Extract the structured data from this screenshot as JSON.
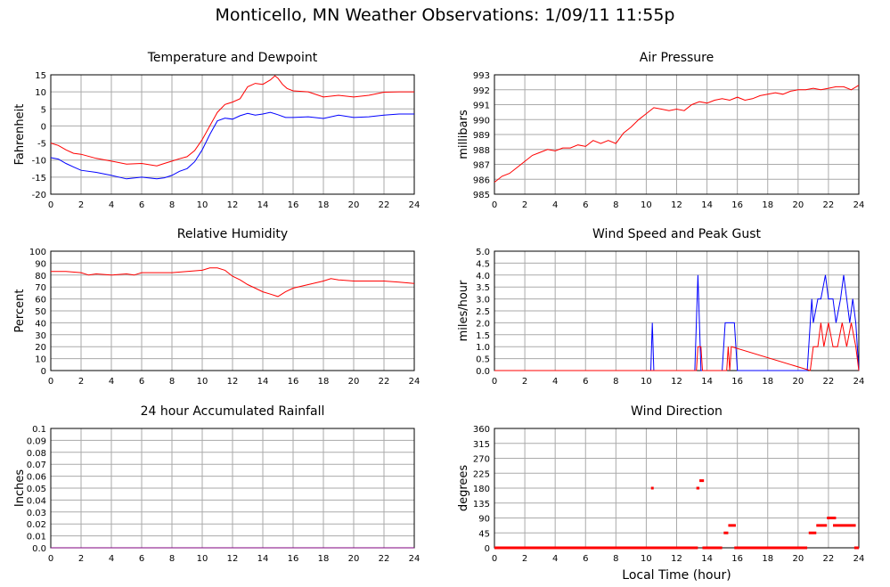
{
  "page_title": "Monticello, MN Weather Observations: 1/09/11 11:55p",
  "colors": {
    "red": "#ff0000",
    "blue": "#0000ff",
    "purple": "#7f007f",
    "grid": "#aaaaaa",
    "frame": "#000000"
  },
  "chart_data": [
    {
      "type": "line",
      "title": "Temperature and Dewpoint",
      "xlabel": "",
      "ylabel": "Fahrenheit",
      "xlim": [
        0,
        24
      ],
      "ylim": [
        -20,
        15
      ],
      "x_ticks": [
        0,
        2,
        4,
        6,
        8,
        10,
        12,
        14,
        16,
        18,
        20,
        22,
        24
      ],
      "y_ticks": [
        "-20",
        "-15",
        "-10",
        "-5",
        "0",
        "5",
        "10",
        "15"
      ],
      "grid": true,
      "series": [
        {
          "color": "#ff0000",
          "x": [
            0,
            0.5,
            1,
            1.5,
            2,
            3,
            4,
            5,
            6,
            7,
            7.5,
            8,
            8.5,
            9,
            9.5,
            10,
            10.5,
            11,
            11.5,
            12,
            12.5,
            13,
            13.5,
            14,
            14.5,
            14.8,
            15,
            15.3,
            15.6,
            16,
            17,
            18,
            19,
            20,
            21,
            22,
            23,
            24
          ],
          "y": [
            -5,
            -5.7,
            -7,
            -8,
            -8.3,
            -9.5,
            -10.3,
            -11.2,
            -11,
            -11.7,
            -11,
            -10.3,
            -9.6,
            -9,
            -7.2,
            -4,
            0,
            4,
            6.3,
            7,
            8,
            11.5,
            12.5,
            12.2,
            13.5,
            14.7,
            14,
            12.2,
            11,
            10.3,
            10,
            8.5,
            9,
            8.5,
            9,
            9.9,
            10,
            10
          ]
        },
        {
          "color": "#0000ff",
          "x": [
            0,
            0.5,
            1,
            1.5,
            2,
            3,
            4,
            5,
            6,
            7,
            7.5,
            8,
            8.5,
            9,
            9.5,
            10,
            10.5,
            11,
            11.5,
            12,
            12.5,
            13,
            13.5,
            14,
            14.5,
            15,
            15.5,
            16,
            17,
            18,
            19,
            20,
            21,
            22,
            23,
            24
          ],
          "y": [
            -9.3,
            -9.7,
            -11,
            -12,
            -13,
            -13.6,
            -14.5,
            -15.5,
            -15,
            -15.5,
            -15.2,
            -14.5,
            -13.3,
            -12.5,
            -10.5,
            -7,
            -2.5,
            1.5,
            2.3,
            2,
            3,
            3.7,
            3.2,
            3.5,
            4,
            3.3,
            2.5,
            2.5,
            2.7,
            2.2,
            3.2,
            2.5,
            2.7,
            3.2,
            3.5,
            3.5
          ]
        }
      ]
    },
    {
      "type": "line",
      "title": "Air Pressure",
      "xlabel": "",
      "ylabel": "millibars",
      "xlim": [
        0,
        24
      ],
      "ylim": [
        985,
        993
      ],
      "x_ticks": [
        0,
        2,
        4,
        6,
        8,
        10,
        12,
        14,
        16,
        18,
        20,
        22,
        24
      ],
      "y_ticks": [
        "985",
        "986",
        "987",
        "988",
        "989",
        "990",
        "991",
        "992",
        "993"
      ],
      "grid": true,
      "series": [
        {
          "color": "#ff0000",
          "x": [
            0,
            0.5,
            1,
            1.5,
            2,
            2.5,
            3,
            3.5,
            4,
            4.5,
            5,
            5.5,
            6,
            6.5,
            7,
            7.5,
            8,
            8.5,
            9,
            9.5,
            10,
            10.5,
            11,
            11.5,
            12,
            12.5,
            13,
            13.5,
            14,
            14.5,
            15,
            15.5,
            16,
            16.5,
            17,
            17.5,
            18,
            18.5,
            19,
            19.5,
            20,
            20.5,
            21,
            21.5,
            22,
            22.5,
            23,
            23.5,
            24
          ],
          "y": [
            985.8,
            986.2,
            986.4,
            986.8,
            987.2,
            987.6,
            987.8,
            988,
            987.9,
            988.1,
            988.1,
            988.3,
            988.2,
            988.6,
            988.4,
            988.6,
            988.4,
            989.1,
            989.5,
            990,
            990.4,
            990.8,
            990.7,
            990.6,
            990.7,
            990.6,
            991,
            991.2,
            991.1,
            991.3,
            991.4,
            991.3,
            991.5,
            991.3,
            991.4,
            991.6,
            991.7,
            991.8,
            991.7,
            991.9,
            992,
            992,
            992.1,
            992,
            992.1,
            992.2,
            992.2,
            992,
            992.3
          ]
        }
      ]
    },
    {
      "type": "line",
      "title": "Relative Humidity",
      "xlabel": "",
      "ylabel": "Percent",
      "xlim": [
        0,
        24
      ],
      "ylim": [
        0,
        100
      ],
      "x_ticks": [
        0,
        2,
        4,
        6,
        8,
        10,
        12,
        14,
        16,
        18,
        20,
        22,
        24
      ],
      "y_ticks": [
        "0",
        "10",
        "20",
        "30",
        "40",
        "50",
        "60",
        "70",
        "80",
        "90",
        "100"
      ],
      "grid": true,
      "series": [
        {
          "color": "#ff0000",
          "x": [
            0,
            1,
            2,
            2.5,
            3,
            4,
            5,
            5.5,
            6,
            7,
            8,
            9,
            10,
            10.5,
            11,
            11.5,
            12,
            12.5,
            13,
            13.5,
            14,
            14.5,
            15,
            15.5,
            16,
            17,
            18,
            18.5,
            19,
            20,
            21,
            22,
            23,
            24
          ],
          "y": [
            83,
            83,
            82,
            80,
            81,
            80,
            81,
            80,
            82,
            82,
            82,
            83,
            84,
            86,
            86,
            84,
            79,
            76,
            72,
            69,
            66,
            64,
            62,
            66,
            69,
            72,
            75,
            77,
            76,
            75,
            75,
            75,
            74,
            73
          ]
        }
      ]
    },
    {
      "type": "line",
      "title": "Wind Speed and Peak Gust",
      "xlabel": "",
      "ylabel": "miles/hour",
      "xlim": [
        0,
        24
      ],
      "ylim": [
        0,
        5
      ],
      "x_ticks": [
        0,
        2,
        4,
        6,
        8,
        10,
        12,
        14,
        16,
        18,
        20,
        22,
        24
      ],
      "y_ticks": [
        "0.0",
        "0.5",
        "1.0",
        "1.5",
        "2.0",
        "2.5",
        "3.0",
        "3.5",
        "4.0",
        "4.5",
        "5.0"
      ],
      "grid": true,
      "series": [
        {
          "color": "#0000ff",
          "x": [
            0,
            10.3,
            10.4,
            10.5,
            13.2,
            13.4,
            13.6,
            15,
            15.2,
            15.5,
            15.8,
            16,
            20.6,
            20.9,
            21,
            21.3,
            21.5,
            21.8,
            22,
            22.3,
            22.5,
            22.8,
            23,
            23.2,
            23.4,
            23.6,
            23.8,
            24
          ],
          "y": [
            0,
            0,
            2,
            0,
            0,
            4,
            0,
            0,
            2,
            2,
            2,
            0,
            0,
            3,
            2,
            3,
            3,
            4,
            3,
            3,
            2,
            3,
            4,
            3,
            2,
            3,
            2,
            0
          ]
        },
        {
          "color": "#ff0000",
          "x": [
            0,
            13.3,
            13.4,
            13.6,
            13.7,
            15.3,
            15.4,
            15.5,
            15.6,
            20.8,
            21,
            21.3,
            21.5,
            21.7,
            22,
            22.3,
            22.6,
            22.9,
            23.2,
            23.5,
            23.8,
            24
          ],
          "y": [
            0,
            0,
            1,
            1,
            0,
            0,
            1,
            0,
            1,
            0,
            1,
            1,
            2,
            1,
            2,
            1,
            1,
            2,
            1,
            2,
            1,
            0
          ]
        }
      ]
    },
    {
      "type": "line",
      "title": "24 hour Accumulated Rainfall",
      "xlabel": "",
      "ylabel": "Inches",
      "xlim": [
        0,
        24
      ],
      "ylim": [
        0,
        0.1
      ],
      "x_ticks": [
        0,
        2,
        4,
        6,
        8,
        10,
        12,
        14,
        16,
        18,
        20,
        22,
        24
      ],
      "y_ticks": [
        "0.0",
        "0.01",
        "0.02",
        "0.03",
        "0.04",
        "0.05",
        "0.06",
        "0.07",
        "0.08",
        "0.09",
        "0.1"
      ],
      "grid": true,
      "series": [
        {
          "color": "#7f007f",
          "x": [
            0,
            24
          ],
          "y": [
            0,
            0
          ]
        }
      ]
    },
    {
      "type": "scatter",
      "title": "Wind Direction",
      "xlabel": "Local Time (hour)",
      "ylabel": "degrees",
      "xlim": [
        0,
        24
      ],
      "ylim": [
        0,
        360
      ],
      "x_ticks": [
        0,
        2,
        4,
        6,
        8,
        10,
        12,
        14,
        16,
        18,
        20,
        22,
        24
      ],
      "y_ticks": [
        "0",
        "45",
        "90",
        "135",
        "180",
        "225",
        "270",
        "315",
        "360"
      ],
      "grid": true,
      "segments": [
        {
          "x0": 0,
          "x1": 13.4,
          "y": 0
        },
        {
          "x0": 13.7,
          "x1": 15,
          "y": 0
        },
        {
          "x0": 15.8,
          "x1": 20.6,
          "y": 0
        },
        {
          "x0": 23.7,
          "x1": 24,
          "y": 0
        },
        {
          "x0": 13.3,
          "x1": 13.5,
          "y": 180
        },
        {
          "x0": 13.5,
          "x1": 13.8,
          "y": 202.5
        },
        {
          "x0": 15.1,
          "x1": 15.4,
          "y": 45
        },
        {
          "x0": 15.4,
          "x1": 15.9,
          "y": 67.5
        },
        {
          "x0": 20.7,
          "x1": 21.2,
          "y": 45
        },
        {
          "x0": 21.2,
          "x1": 21.9,
          "y": 67.5
        },
        {
          "x0": 21.9,
          "x1": 22.5,
          "y": 90
        },
        {
          "x0": 22.3,
          "x1": 23.8,
          "y": 67.5
        }
      ],
      "points": [
        {
          "x": 10.4,
          "y": 180
        }
      ]
    }
  ]
}
